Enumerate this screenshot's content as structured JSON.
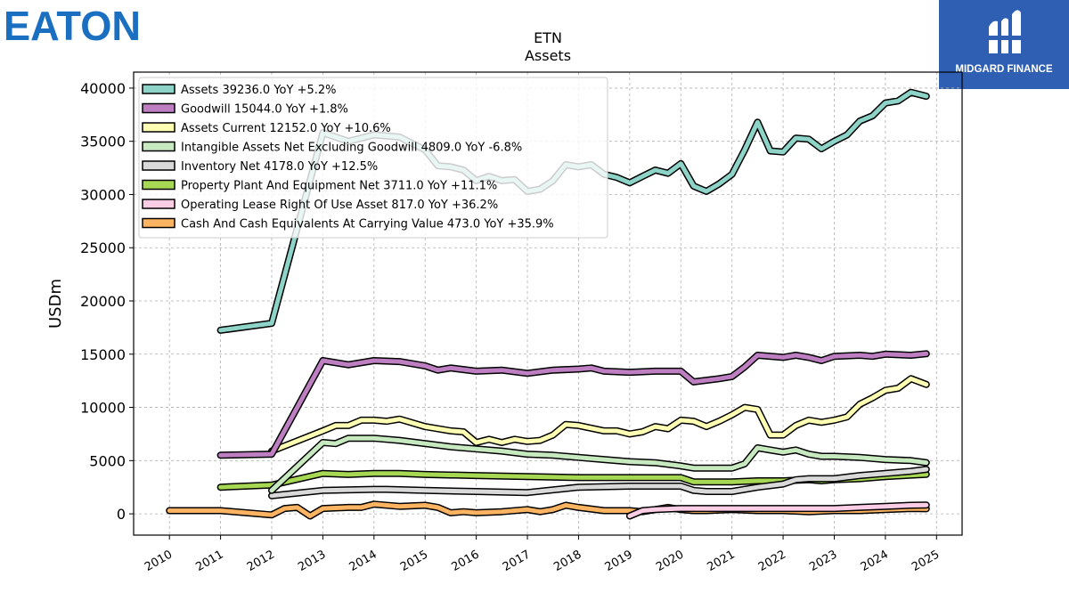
{
  "logos": {
    "left_brand": "EATON",
    "right_brand": "MIDGARD FINANCE"
  },
  "chart_data": {
    "type": "line",
    "title": "ETN",
    "subtitle": "Assets",
    "xlabel": "",
    "ylabel": "USDm",
    "xlim": [
      2009.3,
      2025.5
    ],
    "ylim": [
      -2000,
      41500
    ],
    "x_ticks": [
      2010,
      2011,
      2012,
      2013,
      2014,
      2015,
      2016,
      2017,
      2018,
      2019,
      2020,
      2021,
      2022,
      2023,
      2024,
      2025
    ],
    "y_ticks": [
      0,
      5000,
      10000,
      15000,
      20000,
      25000,
      30000,
      35000,
      40000
    ],
    "grid": true,
    "legend_position": "top-left",
    "series": [
      {
        "name": "Assets",
        "legend_label": "Assets  39236.0 YoY +5.2%",
        "color": "#8dd3c7",
        "points": [
          [
            2011.0,
            17250
          ],
          [
            2012.0,
            17900
          ],
          [
            2013.0,
            35800
          ],
          [
            2013.5,
            35000
          ],
          [
            2014.0,
            35600
          ],
          [
            2014.5,
            35400
          ],
          [
            2015.0,
            34200
          ],
          [
            2015.25,
            32700
          ],
          [
            2015.5,
            32600
          ],
          [
            2015.75,
            32300
          ],
          [
            2016.0,
            31300
          ],
          [
            2016.25,
            31700
          ],
          [
            2016.5,
            31300
          ],
          [
            2016.75,
            31400
          ],
          [
            2017.0,
            30300
          ],
          [
            2017.25,
            30500
          ],
          [
            2017.5,
            31300
          ],
          [
            2017.75,
            32800
          ],
          [
            2018.0,
            32600
          ],
          [
            2018.25,
            32800
          ],
          [
            2018.5,
            31900
          ],
          [
            2018.75,
            31600
          ],
          [
            2019.0,
            31100
          ],
          [
            2019.25,
            31700
          ],
          [
            2019.5,
            32300
          ],
          [
            2019.75,
            32000
          ],
          [
            2020.0,
            32900
          ],
          [
            2020.25,
            30800
          ],
          [
            2020.5,
            30300
          ],
          [
            2020.75,
            31000
          ],
          [
            2021.0,
            31900
          ],
          [
            2021.25,
            34200
          ],
          [
            2021.5,
            36800
          ],
          [
            2021.75,
            34100
          ],
          [
            2022.0,
            34000
          ],
          [
            2022.25,
            35300
          ],
          [
            2022.5,
            35200
          ],
          [
            2022.75,
            34300
          ],
          [
            2023.0,
            35000
          ],
          [
            2023.25,
            35600
          ],
          [
            2023.5,
            36900
          ],
          [
            2023.75,
            37400
          ],
          [
            2024.0,
            38600
          ],
          [
            2024.25,
            38800
          ],
          [
            2024.5,
            39600
          ],
          [
            2024.8,
            39236
          ]
        ]
      },
      {
        "name": "Goodwill",
        "legend_label": "Goodwill  15044.0 YoY +1.8%",
        "color": "#bd7fc1",
        "points": [
          [
            2011.0,
            5500
          ],
          [
            2012.0,
            5600
          ],
          [
            2013.0,
            14400
          ],
          [
            2013.5,
            14000
          ],
          [
            2014.0,
            14400
          ],
          [
            2014.5,
            14300
          ],
          [
            2015.0,
            13900
          ],
          [
            2015.25,
            13500
          ],
          [
            2015.5,
            13700
          ],
          [
            2016.0,
            13400
          ],
          [
            2016.5,
            13500
          ],
          [
            2017.0,
            13200
          ],
          [
            2017.5,
            13500
          ],
          [
            2018.0,
            13600
          ],
          [
            2018.25,
            13700
          ],
          [
            2018.5,
            13400
          ],
          [
            2019.0,
            13300
          ],
          [
            2019.5,
            13400
          ],
          [
            2020.0,
            13400
          ],
          [
            2020.25,
            12400
          ],
          [
            2020.75,
            12700
          ],
          [
            2021.0,
            12900
          ],
          [
            2021.25,
            13800
          ],
          [
            2021.5,
            14900
          ],
          [
            2022.0,
            14700
          ],
          [
            2022.25,
            14900
          ],
          [
            2022.5,
            14700
          ],
          [
            2022.75,
            14400
          ],
          [
            2023.0,
            14800
          ],
          [
            2023.5,
            14900
          ],
          [
            2023.75,
            14800
          ],
          [
            2024.0,
            15000
          ],
          [
            2024.5,
            14900
          ],
          [
            2024.8,
            15044
          ]
        ]
      },
      {
        "name": "Assets Current",
        "legend_label": "Assets Current  12152.0 YoY +10.6%",
        "color": "#ffffb3",
        "points": [
          [
            2012.0,
            5900
          ],
          [
            2013.0,
            7800
          ],
          [
            2013.25,
            8300
          ],
          [
            2013.5,
            8300
          ],
          [
            2013.75,
            8800
          ],
          [
            2014.0,
            8800
          ],
          [
            2014.25,
            8700
          ],
          [
            2014.5,
            8900
          ],
          [
            2015.0,
            8200
          ],
          [
            2015.5,
            7800
          ],
          [
            2015.75,
            7700
          ],
          [
            2016.0,
            6700
          ],
          [
            2016.25,
            7000
          ],
          [
            2016.5,
            6700
          ],
          [
            2016.75,
            7000
          ],
          [
            2017.0,
            6800
          ],
          [
            2017.25,
            6900
          ],
          [
            2017.5,
            7400
          ],
          [
            2017.75,
            8400
          ],
          [
            2018.0,
            8300
          ],
          [
            2018.5,
            7800
          ],
          [
            2018.75,
            7800
          ],
          [
            2019.0,
            7500
          ],
          [
            2019.25,
            7700
          ],
          [
            2019.5,
            8200
          ],
          [
            2019.75,
            8000
          ],
          [
            2020.0,
            8800
          ],
          [
            2020.25,
            8700
          ],
          [
            2020.5,
            8200
          ],
          [
            2020.75,
            8700
          ],
          [
            2021.0,
            9300
          ],
          [
            2021.25,
            10000
          ],
          [
            2021.5,
            9800
          ],
          [
            2021.75,
            7400
          ],
          [
            2022.0,
            7400
          ],
          [
            2022.25,
            8300
          ],
          [
            2022.5,
            8800
          ],
          [
            2022.75,
            8600
          ],
          [
            2023.0,
            8800
          ],
          [
            2023.25,
            9100
          ],
          [
            2023.5,
            10300
          ],
          [
            2023.75,
            10900
          ],
          [
            2024.0,
            11600
          ],
          [
            2024.25,
            11800
          ],
          [
            2024.5,
            12700
          ],
          [
            2024.8,
            12152
          ]
        ]
      },
      {
        "name": "Intangible Assets Net Excluding Goodwill",
        "legend_label": "Intangible Assets Net Excluding Goodwill  4809.0 YoY -6.8%",
        "color": "#c7e9c0",
        "points": [
          [
            2012.0,
            2200
          ],
          [
            2013.0,
            6700
          ],
          [
            2013.25,
            6600
          ],
          [
            2013.5,
            7100
          ],
          [
            2014.0,
            7100
          ],
          [
            2014.5,
            6900
          ],
          [
            2015.0,
            6600
          ],
          [
            2015.5,
            6300
          ],
          [
            2016.0,
            6100
          ],
          [
            2016.5,
            5900
          ],
          [
            2017.0,
            5600
          ],
          [
            2017.5,
            5500
          ],
          [
            2018.0,
            5300
          ],
          [
            2018.5,
            5100
          ],
          [
            2019.0,
            4900
          ],
          [
            2019.5,
            4800
          ],
          [
            2020.0,
            4500
          ],
          [
            2020.25,
            4300
          ],
          [
            2021.0,
            4300
          ],
          [
            2021.25,
            4700
          ],
          [
            2021.5,
            6200
          ],
          [
            2021.75,
            6000
          ],
          [
            2022.0,
            5800
          ],
          [
            2022.25,
            6000
          ],
          [
            2022.5,
            5600
          ],
          [
            2022.75,
            5400
          ],
          [
            2023.0,
            5400
          ],
          [
            2023.5,
            5300
          ],
          [
            2024.0,
            5100
          ],
          [
            2024.5,
            5000
          ],
          [
            2024.8,
            4809
          ]
        ]
      },
      {
        "name": "Inventory Net",
        "legend_label": "Inventory Net  4178.0 YoY +12.5%",
        "color": "#d9d9d9",
        "points": [
          [
            2012.0,
            1700
          ],
          [
            2013.0,
            2200
          ],
          [
            2014.0,
            2300
          ],
          [
            2014.25,
            2300
          ],
          [
            2015.0,
            2200
          ],
          [
            2016.0,
            2100
          ],
          [
            2017.0,
            2000
          ],
          [
            2018.0,
            2500
          ],
          [
            2019.0,
            2600
          ],
          [
            2020.0,
            2600
          ],
          [
            2020.25,
            2200
          ],
          [
            2020.5,
            2100
          ],
          [
            2021.0,
            2100
          ],
          [
            2021.5,
            2500
          ],
          [
            2022.0,
            2800
          ],
          [
            2022.25,
            3200
          ],
          [
            2022.5,
            3300
          ],
          [
            2023.0,
            3300
          ],
          [
            2023.5,
            3600
          ],
          [
            2024.0,
            3800
          ],
          [
            2024.5,
            4000
          ],
          [
            2024.8,
            4178
          ]
        ]
      },
      {
        "name": "Property Plant And Equipment Net",
        "legend_label": "Property Plant And Equipment Net  3711.0 YoY +11.1%",
        "color": "#a6d854",
        "points": [
          [
            2011.0,
            2500
          ],
          [
            2012.0,
            2700
          ],
          [
            2013.0,
            3800
          ],
          [
            2013.5,
            3700
          ],
          [
            2014.0,
            3800
          ],
          [
            2014.5,
            3800
          ],
          [
            2015.0,
            3700
          ],
          [
            2016.0,
            3600
          ],
          [
            2017.0,
            3500
          ],
          [
            2018.0,
            3400
          ],
          [
            2019.0,
            3400
          ],
          [
            2020.0,
            3400
          ],
          [
            2020.25,
            3000
          ],
          [
            2021.0,
            3000
          ],
          [
            2021.5,
            3100
          ],
          [
            2022.0,
            3100
          ],
          [
            2022.5,
            3200
          ],
          [
            2022.75,
            3100
          ],
          [
            2023.0,
            3200
          ],
          [
            2023.5,
            3300
          ],
          [
            2024.0,
            3500
          ],
          [
            2024.8,
            3711
          ]
        ]
      },
      {
        "name": "Operating Lease Right Of Use Asset",
        "legend_label": "Operating Lease Right Of Use Asset  817.0 YoY +36.2%",
        "color": "#fccde5",
        "points": [
          [
            2019.0,
            -200
          ],
          [
            2019.25,
            300
          ],
          [
            2019.5,
            400
          ],
          [
            2020.0,
            500
          ],
          [
            2020.5,
            500
          ],
          [
            2021.0,
            500
          ],
          [
            2021.5,
            500
          ],
          [
            2022.0,
            500
          ],
          [
            2022.5,
            500
          ],
          [
            2023.0,
            500
          ],
          [
            2023.5,
            600
          ],
          [
            2024.0,
            700
          ],
          [
            2024.5,
            800
          ],
          [
            2024.8,
            817
          ]
        ]
      },
      {
        "name": "Cash And Cash Equivalents At Carrying Value",
        "legend_label": "Cash And Cash Equivalents At Carrying Value  473.0 YoY +35.9%",
        "color": "#fdb462",
        "points": [
          [
            2010.0,
            300
          ],
          [
            2011.0,
            300
          ],
          [
            2012.0,
            -100
          ],
          [
            2012.25,
            500
          ],
          [
            2012.5,
            600
          ],
          [
            2012.75,
            -200
          ],
          [
            2013.0,
            500
          ],
          [
            2013.5,
            600
          ],
          [
            2013.75,
            600
          ],
          [
            2014.0,
            900
          ],
          [
            2014.5,
            700
          ],
          [
            2015.0,
            800
          ],
          [
            2015.25,
            600
          ],
          [
            2015.5,
            100
          ],
          [
            2015.75,
            200
          ],
          [
            2016.0,
            100
          ],
          [
            2016.5,
            200
          ],
          [
            2017.0,
            400
          ],
          [
            2017.25,
            200
          ],
          [
            2017.5,
            400
          ],
          [
            2017.75,
            800
          ],
          [
            2018.0,
            600
          ],
          [
            2018.5,
            300
          ],
          [
            2019.0,
            300
          ],
          [
            2019.25,
            200
          ],
          [
            2019.5,
            400
          ],
          [
            2019.75,
            600
          ],
          [
            2020.0,
            400
          ],
          [
            2020.25,
            300
          ],
          [
            2020.5,
            300
          ],
          [
            2021.0,
            400
          ],
          [
            2021.5,
            300
          ],
          [
            2022.0,
            300
          ],
          [
            2022.5,
            200
          ],
          [
            2023.0,
            300
          ],
          [
            2023.5,
            300
          ],
          [
            2024.0,
            400
          ],
          [
            2024.5,
            500
          ],
          [
            2024.8,
            473
          ]
        ]
      }
    ]
  }
}
